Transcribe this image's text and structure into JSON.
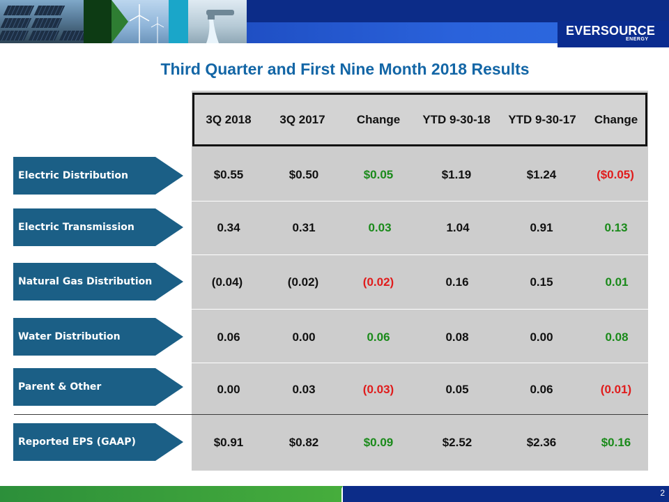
{
  "slide": {
    "title": "Third Quarter and First Nine Month 2018 Results",
    "page_number": "2"
  },
  "logo": {
    "name": "EVERSOURCE",
    "sub": "ENERGY"
  },
  "colors": {
    "accent": "#1366a6",
    "label_fill": "#1b5f86",
    "positive": "#1a8a1a",
    "negative": "#e01c1c",
    "ribbon": "#0c2c88"
  },
  "table": {
    "headers": [
      "3Q 2018",
      "3Q 2017",
      "Change",
      "YTD 9-30-18",
      "YTD 9-30-17",
      "Change"
    ],
    "rows": [
      {
        "label": "Electric Distribution",
        "values": [
          "$0.55",
          "$0.50",
          "$0.05",
          "$1.19",
          "$1.24",
          "($0.05)"
        ]
      },
      {
        "label": "Electric Transmission",
        "values": [
          "0.34",
          "0.31",
          "0.03",
          "1.04",
          "0.91",
          "0.13"
        ]
      },
      {
        "label": "Natural Gas Distribution",
        "values": [
          "(0.04)",
          "(0.02)",
          "(0.02)",
          "0.16",
          "0.15",
          "0.01"
        ]
      },
      {
        "label": "Water Distribution",
        "values": [
          "0.06",
          "0.00",
          "0.06",
          "0.08",
          "0.00",
          "0.08"
        ]
      },
      {
        "label": "Parent & Other",
        "values": [
          "0.00",
          "0.03",
          "(0.03)",
          "0.05",
          "0.06",
          "(0.01)"
        ]
      },
      {
        "label": "Reported EPS (GAAP)",
        "values": [
          "$0.91",
          "$0.82",
          "$0.09",
          "$2.52",
          "$2.36",
          "$0.16"
        ]
      }
    ]
  }
}
